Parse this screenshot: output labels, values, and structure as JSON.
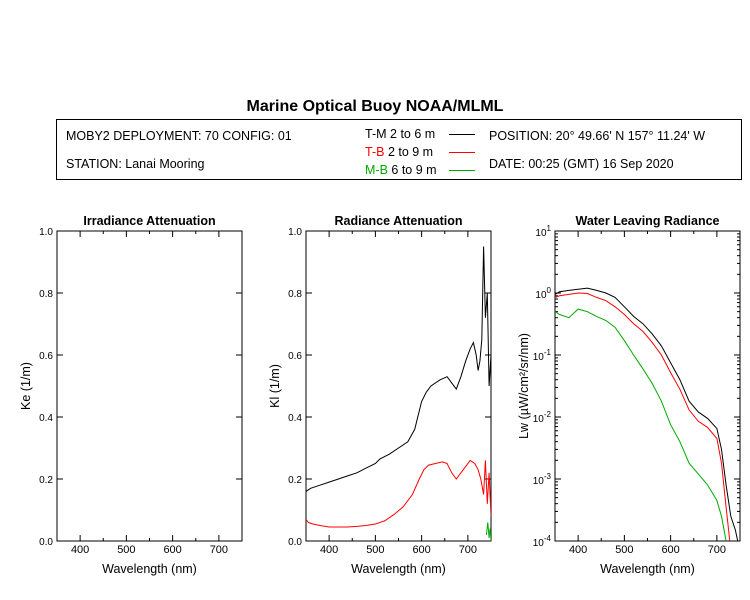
{
  "title": "Marine Optical Buoy NOAA/MLML",
  "info": {
    "deployment": "MOBY2 DEPLOYMENT: 70 CONFIG: 01",
    "station": "STATION: Lanai Mooring",
    "position": "POSITION: 20° 49.66' N   157° 11.24' W",
    "date": "DATE: 00:25 (GMT) 16 Sep 2020"
  },
  "legend": [
    {
      "key": "T-M",
      "range": "2 to 6  m",
      "color": "#000000"
    },
    {
      "key": "T-B",
      "range": "2 to 9  m",
      "color": "#ff0000"
    },
    {
      "key": "M-B",
      "range": "6 to 9  m",
      "color": "#00aa00"
    }
  ],
  "chart_data": [
    {
      "type": "line",
      "title": "Irradiance Attenuation",
      "xlabel": "Wavelength (nm)",
      "ylabel": "Ke  (1/m)",
      "xlim": [
        350,
        750
      ],
      "ylim": [
        0,
        1.0
      ],
      "xticks": [
        "400",
        "500",
        "600",
        "700"
      ],
      "yticks": [
        "0.0",
        "0.2",
        "0.4",
        "0.6",
        "0.8",
        "1.0"
      ],
      "series": []
    },
    {
      "type": "line",
      "title": "Radiance Attenuation",
      "xlabel": "Wavelength (nm)",
      "ylabel": "Kl  (1/m)",
      "xlim": [
        350,
        750
      ],
      "ylim": [
        0,
        1.0
      ],
      "xticks": [
        "400",
        "500",
        "600",
        "700"
      ],
      "yticks": [
        "0.0",
        "0.2",
        "0.4",
        "0.6",
        "0.8",
        "1.0"
      ],
      "series": [
        {
          "name": "T-M",
          "color": "#000000",
          "x": [
            350,
            360,
            380,
            400,
            420,
            440,
            460,
            480,
            500,
            510,
            530,
            550,
            570,
            585,
            595,
            600,
            610,
            620,
            640,
            655,
            665,
            675,
            685,
            695,
            705,
            712,
            718,
            722,
            726,
            730,
            734,
            738,
            742,
            746,
            750
          ],
          "y": [
            0.16,
            0.17,
            0.18,
            0.19,
            0.2,
            0.21,
            0.22,
            0.235,
            0.25,
            0.265,
            0.28,
            0.3,
            0.32,
            0.36,
            0.42,
            0.45,
            0.48,
            0.5,
            0.52,
            0.53,
            0.51,
            0.49,
            0.53,
            0.58,
            0.62,
            0.64,
            0.6,
            0.55,
            0.58,
            0.65,
            0.95,
            0.72,
            0.8,
            0.5,
            0.6
          ]
        },
        {
          "name": "T-B",
          "color": "#ff0000",
          "x": [
            350,
            355,
            365,
            380,
            400,
            420,
            440,
            460,
            480,
            500,
            520,
            540,
            560,
            580,
            595,
            605,
            615,
            630,
            645,
            655,
            665,
            675,
            685,
            695,
            705,
            715,
            722,
            728,
            734,
            738,
            742,
            746,
            750
          ],
          "y": [
            0.07,
            0.06,
            0.055,
            0.05,
            0.045,
            0.045,
            0.045,
            0.047,
            0.05,
            0.055,
            0.065,
            0.085,
            0.11,
            0.15,
            0.2,
            0.23,
            0.245,
            0.25,
            0.255,
            0.25,
            0.22,
            0.2,
            0.22,
            0.24,
            0.26,
            0.25,
            0.23,
            0.2,
            0.15,
            0.26,
            0.12,
            0.22,
            0.08
          ]
        },
        {
          "name": "M-B",
          "color": "#00aa00",
          "x": [
            740,
            743,
            746,
            748,
            750
          ],
          "y": [
            0.02,
            0.06,
            0.01,
            0.04,
            0.0
          ]
        }
      ]
    },
    {
      "type": "line",
      "title": "Water Leaving Radiance",
      "xlabel": "Wavelength (nm)",
      "ylabel": "Lw  (µW/cm²/sr/nm)",
      "xlim": [
        350,
        750
      ],
      "ylim": [
        0.0001,
        10
      ],
      "yscale": "log",
      "xticks": [
        "400",
        "500",
        "600",
        "700"
      ],
      "yticks": [
        "10",
        "10",
        "10",
        "10",
        "10",
        "10"
      ],
      "ytick_exponents": [
        "1",
        "0",
        "-1",
        "-2",
        "-3",
        "-4"
      ],
      "series": [
        {
          "name": "T-M",
          "color": "#000000",
          "x": [
            350,
            360,
            380,
            400,
            420,
            440,
            460,
            480,
            500,
            520,
            540,
            560,
            580,
            600,
            620,
            640,
            660,
            680,
            700,
            710,
            720,
            730,
            740,
            745
          ],
          "y": [
            0.95,
            1.05,
            1.1,
            1.15,
            1.2,
            1.1,
            1.0,
            0.85,
            0.6,
            0.42,
            0.32,
            0.22,
            0.14,
            0.075,
            0.04,
            0.018,
            0.012,
            0.0095,
            0.0065,
            0.003,
            0.0008,
            0.00025,
            0.00015,
            0.0001
          ]
        },
        {
          "name": "T-B",
          "color": "#ff0000",
          "x": [
            350,
            360,
            380,
            400,
            420,
            440,
            460,
            480,
            500,
            520,
            540,
            560,
            580,
            600,
            620,
            640,
            660,
            680,
            700,
            710,
            720,
            728
          ],
          "y": [
            0.85,
            0.9,
            0.95,
            1.0,
            0.98,
            0.85,
            0.75,
            0.6,
            0.45,
            0.32,
            0.24,
            0.16,
            0.1,
            0.052,
            0.028,
            0.013,
            0.0085,
            0.0068,
            0.0045,
            0.0018,
            0.00035,
            0.0001
          ]
        },
        {
          "name": "M-B",
          "color": "#00aa00",
          "x": [
            350,
            360,
            380,
            400,
            420,
            440,
            460,
            480,
            500,
            520,
            540,
            560,
            580,
            600,
            620,
            640,
            660,
            680,
            700,
            710,
            720
          ],
          "y": [
            0.5,
            0.45,
            0.4,
            0.55,
            0.5,
            0.42,
            0.36,
            0.28,
            0.17,
            0.1,
            0.06,
            0.035,
            0.018,
            0.0075,
            0.004,
            0.0018,
            0.0012,
            0.0008,
            0.00045,
            0.00025,
            0.0001
          ]
        }
      ]
    }
  ]
}
